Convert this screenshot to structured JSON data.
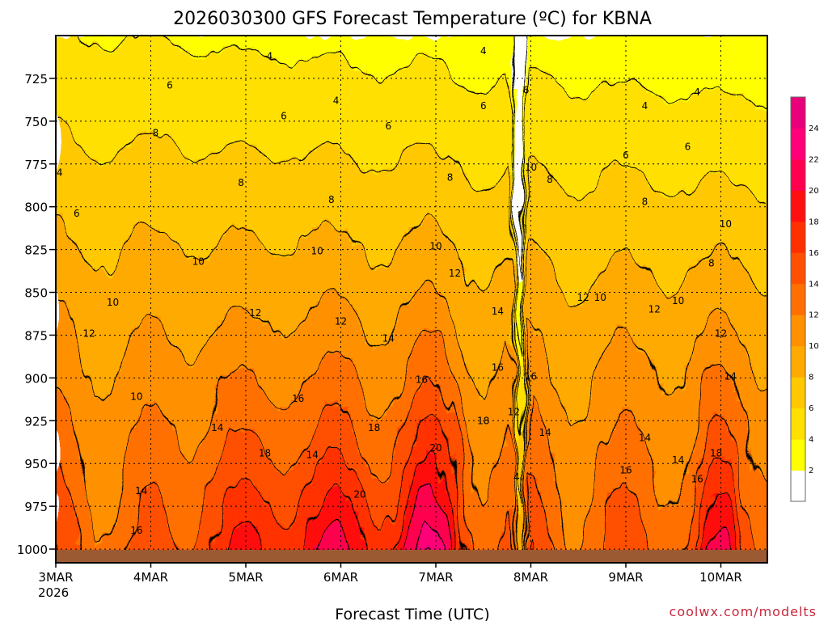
{
  "chart_data": {
    "type": "heatmap",
    "title": "2026030300 GFS Forecast Temperature (ºC) for KBNA",
    "xlabel": "Forecast Time (UTC)",
    "ylabel": "",
    "x_ticks": [
      "3MAR",
      "4MAR",
      "5MAR",
      "6MAR",
      "7MAR",
      "8MAR",
      "9MAR",
      "10MAR"
    ],
    "x_tick_year": "2026",
    "x_range_days": [
      0,
      7.5
    ],
    "y_ticks": [
      725,
      750,
      775,
      800,
      825,
      850,
      875,
      900,
      925,
      950,
      975,
      1000
    ],
    "y_range_hpa": [
      700,
      1008
    ],
    "contour_interval_c": 2,
    "legend": {
      "labels": [
        "2",
        "4",
        "6",
        "8",
        "10",
        "12",
        "14",
        "16",
        "18",
        "20",
        "22",
        "24"
      ],
      "colors": [
        "#ffffff",
        "#ffff00",
        "#ffe000",
        "#ffc800",
        "#ffaa00",
        "#ff9000",
        "#ff7000",
        "#ff5000",
        "#ff3000",
        "#ff1010",
        "#ff0050",
        "#ff0078",
        "#e8007a"
      ]
    },
    "ground_color": "#9c5a32",
    "temperature_profile_samples": [
      {
        "day": 0.0,
        "p850": 9,
        "p1000": 14
      },
      {
        "day": 1.0,
        "p850": 11,
        "p1000": 13
      },
      {
        "day": 2.0,
        "p850": 11,
        "p1000": 20
      },
      {
        "day": 3.0,
        "p850": 12,
        "p1000": 21
      },
      {
        "day": 4.0,
        "p850": 13,
        "p1000": 23
      },
      {
        "day": 5.0,
        "p850": 12,
        "p1000": 15
      },
      {
        "day": 6.0,
        "p850": 12,
        "p1000": 15
      },
      {
        "day": 7.0,
        "p850": 11,
        "p1000": 19
      }
    ],
    "contour_labels": [
      {
        "text": "4",
        "day": 2.25,
        "p": 712
      },
      {
        "text": "4",
        "day": 4.5,
        "p": 709
      },
      {
        "text": "4",
        "day": 2.95,
        "p": 738
      },
      {
        "text": "4",
        "day": 6.2,
        "p": 741
      },
      {
        "text": "4",
        "day": 6.75,
        "p": 733
      },
      {
        "text": "4",
        "day": 0.04,
        "p": 780
      },
      {
        "text": "6",
        "day": 1.2,
        "p": 729
      },
      {
        "text": "6",
        "day": 2.4,
        "p": 747
      },
      {
        "text": "6",
        "day": 3.5,
        "p": 753
      },
      {
        "text": "6",
        "day": 4.5,
        "p": 741
      },
      {
        "text": "6",
        "day": 4.95,
        "p": 732
      },
      {
        "text": "6",
        "day": 6.0,
        "p": 770
      },
      {
        "text": "6",
        "day": 6.65,
        "p": 765
      },
      {
        "text": "6",
        "day": 0.22,
        "p": 804
      },
      {
        "text": "8",
        "day": 1.05,
        "p": 757
      },
      {
        "text": "8",
        "day": 1.95,
        "p": 786
      },
      {
        "text": "8",
        "day": 2.9,
        "p": 796
      },
      {
        "text": "8",
        "day": 4.15,
        "p": 783
      },
      {
        "text": "8",
        "day": 5.2,
        "p": 784
      },
      {
        "text": "8",
        "day": 6.2,
        "p": 797
      },
      {
        "text": "10",
        "day": 5.0,
        "p": 777
      },
      {
        "text": "10",
        "day": 1.5,
        "p": 832
      },
      {
        "text": "10",
        "day": 2.75,
        "p": 826
      },
      {
        "text": "10",
        "day": 4.0,
        "p": 823
      },
      {
        "text": "10",
        "day": 0.6,
        "p": 856
      },
      {
        "text": "10",
        "day": 5.73,
        "p": 853
      },
      {
        "text": "10",
        "day": 6.55,
        "p": 855
      },
      {
        "text": "10",
        "day": 7.05,
        "p": 810
      },
      {
        "text": "10",
        "day": 0.85,
        "p": 911
      },
      {
        "text": "8",
        "day": 6.9,
        "p": 833
      },
      {
        "text": "12",
        "day": 0.35,
        "p": 874
      },
      {
        "text": "12",
        "day": 2.1,
        "p": 862
      },
      {
        "text": "12",
        "day": 3.0,
        "p": 867
      },
      {
        "text": "12",
        "day": 4.2,
        "p": 839
      },
      {
        "text": "12",
        "day": 5.55,
        "p": 853
      },
      {
        "text": "12",
        "day": 6.3,
        "p": 860
      },
      {
        "text": "12",
        "day": 7.0,
        "p": 874
      },
      {
        "text": "14",
        "day": 3.5,
        "p": 877
      },
      {
        "text": "14",
        "day": 4.65,
        "p": 861
      },
      {
        "text": "14",
        "day": 1.7,
        "p": 929
      },
      {
        "text": "14",
        "day": 2.7,
        "p": 945
      },
      {
        "text": "14",
        "day": 0.9,
        "p": 966
      },
      {
        "text": "14",
        "day": 5.15,
        "p": 932
      },
      {
        "text": "14",
        "day": 6.2,
        "p": 935
      },
      {
        "text": "14",
        "day": 6.55,
        "p": 948
      },
      {
        "text": "14",
        "day": 7.1,
        "p": 899
      },
      {
        "text": "16",
        "day": 2.55,
        "p": 912
      },
      {
        "text": "16",
        "day": 3.85,
        "p": 901
      },
      {
        "text": "16",
        "day": 4.65,
        "p": 894
      },
      {
        "text": "16",
        "day": 5.0,
        "p": 899
      },
      {
        "text": "16",
        "day": 6.0,
        "p": 954
      },
      {
        "text": "16",
        "day": 6.75,
        "p": 959
      },
      {
        "text": "16",
        "day": 0.85,
        "p": 989
      },
      {
        "text": "18",
        "day": 2.2,
        "p": 944
      },
      {
        "text": "18",
        "day": 3.35,
        "p": 929
      },
      {
        "text": "18",
        "day": 4.5,
        "p": 925
      },
      {
        "text": "18",
        "day": 6.95,
        "p": 944
      },
      {
        "text": "20",
        "day": 4.0,
        "p": 941
      },
      {
        "text": "20",
        "day": 3.2,
        "p": 968
      },
      {
        "text": "12",
        "day": 4.82,
        "p": 920
      },
      {
        "text": "4",
        "day": 4.85,
        "p": 958
      }
    ]
  },
  "credit": "coolwx.com/modelts"
}
